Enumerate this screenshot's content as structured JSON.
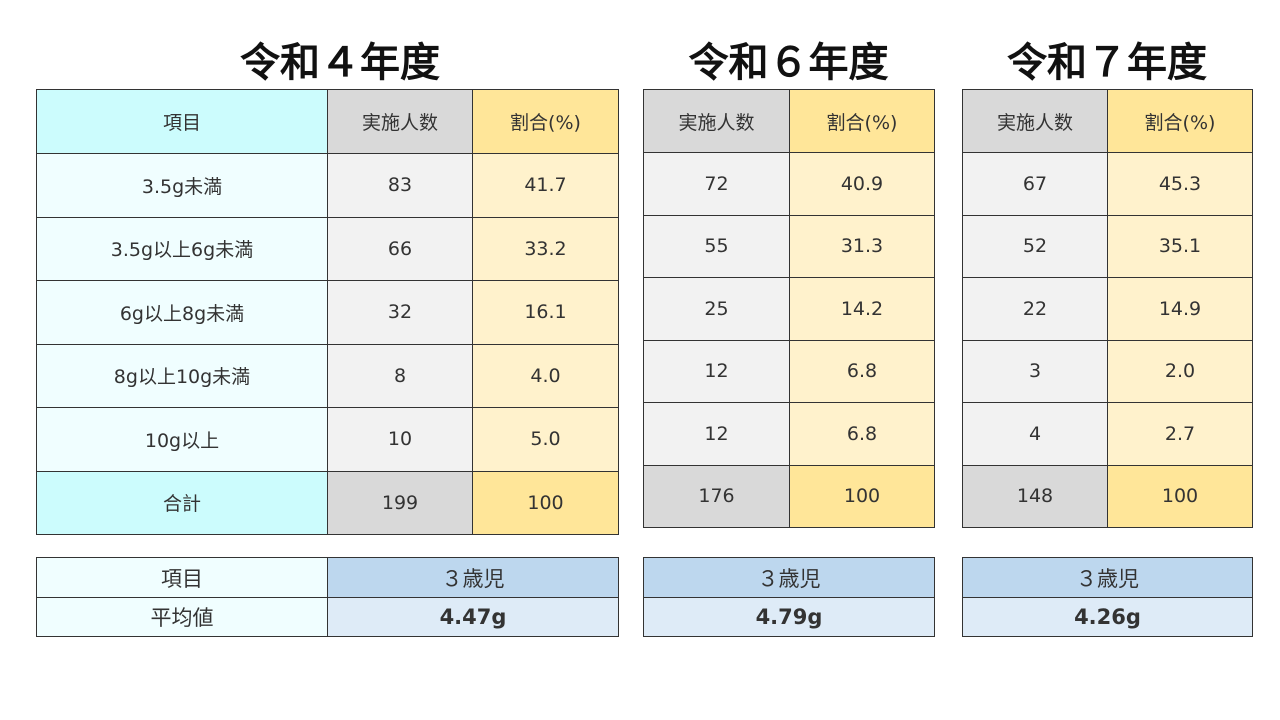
{
  "colors": {
    "item_header": "#ccfcfd",
    "item_cell": "#f0feff",
    "count_header": "#d9d9d9",
    "count_cell": "#f2f2f2",
    "pct_header": "#ffe699",
    "pct_cell": "#fff2cc",
    "avg_header": "#bdd7ee",
    "avg_value": "#deebf7"
  },
  "headers": {
    "item": "項目",
    "count": "実施人数",
    "pct": "割合(%)"
  },
  "row_labels": [
    "3.5g未満",
    "3.5g以上6g未満",
    "6g以上8g未満",
    "8g以上10g未満",
    "10g以上",
    "合計"
  ],
  "average": {
    "item_label": "項目",
    "row_label": "平均値"
  },
  "years": [
    {
      "title": "令和４年度",
      "counts": [
        "83",
        "66",
        "32",
        "8",
        "10",
        "199"
      ],
      "pcts": [
        "41.7",
        "33.2",
        "16.1",
        "4.0",
        "5.0",
        "100"
      ],
      "avg_group": "３歳児",
      "avg_value": "4.47g"
    },
    {
      "title": "令和６年度",
      "counts": [
        "72",
        "55",
        "25",
        "12",
        "12",
        "176"
      ],
      "pcts": [
        "40.9",
        "31.3",
        "14.2",
        "6.8",
        "6.8",
        "100"
      ],
      "avg_group": "３歳児",
      "avg_value": "4.79g"
    },
    {
      "title": "令和７年度",
      "counts": [
        "67",
        "52",
        "22",
        "3",
        "4",
        "148"
      ],
      "pcts": [
        "45.3",
        "35.1",
        "14.9",
        "2.0",
        "2.7",
        "100"
      ],
      "avg_group": "３歳児",
      "avg_value": "4.26g"
    }
  ]
}
